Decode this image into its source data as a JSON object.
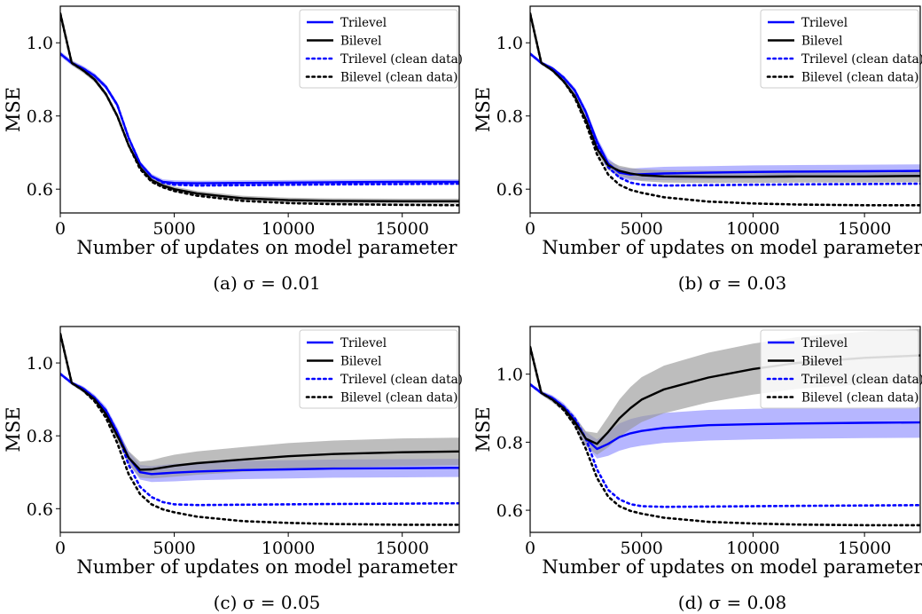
{
  "colors": {
    "trilevel": "#0000ff",
    "bilevel": "#000000",
    "trilevel_band": "#8f8fff",
    "bilevel_band": "#9a9a9a"
  },
  "chart_data": [
    {
      "type": "line",
      "caption": "(a) σ = 0.01",
      "xlabel": "Number of updates on model parameter",
      "ylabel": "MSE",
      "xlim": [
        0,
        17500
      ],
      "ylim": [
        0.535,
        1.1
      ],
      "xticks": [
        0,
        5000,
        10000,
        15000
      ],
      "yticks": [
        0.6,
        0.8,
        1.0
      ],
      "legend_position": "top-right",
      "series": [
        {
          "name": "Trilevel",
          "style": "solid",
          "color": "#0000ff",
          "x": [
            0,
            500,
            1000,
            1500,
            2000,
            2500,
            3000,
            3500,
            4000,
            4500,
            5000,
            6000,
            8000,
            10000,
            12000,
            15000,
            17500
          ],
          "y": [
            0.97,
            0.945,
            0.93,
            0.91,
            0.88,
            0.83,
            0.74,
            0.67,
            0.635,
            0.62,
            0.617,
            0.616,
            0.617,
            0.618,
            0.619,
            0.62,
            0.62
          ],
          "band": [
            0.007,
            0.007,
            0.007,
            0.007,
            0.007,
            0.007,
            0.007,
            0.007,
            0.007,
            0.007,
            0.007,
            0.007,
            0.007,
            0.007,
            0.007,
            0.007,
            0.007
          ]
        },
        {
          "name": "Bilevel",
          "style": "solid",
          "color": "#000000",
          "x": [
            0,
            500,
            1000,
            1500,
            2000,
            2500,
            3000,
            3500,
            4000,
            4500,
            5000,
            6000,
            8000,
            10000,
            12000,
            15000,
            17500
          ],
          "y": [
            1.08,
            0.945,
            0.925,
            0.9,
            0.86,
            0.8,
            0.72,
            0.66,
            0.625,
            0.61,
            0.6,
            0.588,
            0.575,
            0.57,
            0.568,
            0.567,
            0.567
          ],
          "band": [
            0.007,
            0.007,
            0.007,
            0.007,
            0.007,
            0.007,
            0.007,
            0.007,
            0.007,
            0.007,
            0.007,
            0.007,
            0.007,
            0.007,
            0.007,
            0.007,
            0.007
          ]
        },
        {
          "name": "Trilevel (clean data)",
          "style": "dotted",
          "color": "#0000ff",
          "x": [
            0,
            500,
            1000,
            1500,
            2000,
            2500,
            3000,
            3500,
            4000,
            4500,
            5000,
            6000,
            8000,
            10000,
            12000,
            15000,
            17500
          ],
          "y": [
            0.97,
            0.945,
            0.93,
            0.91,
            0.88,
            0.83,
            0.74,
            0.67,
            0.635,
            0.618,
            0.612,
            0.61,
            0.611,
            0.612,
            0.613,
            0.614,
            0.615
          ]
        },
        {
          "name": "Bilevel (clean data)",
          "style": "dotted",
          "color": "#000000",
          "x": [
            0,
            500,
            1000,
            1500,
            2000,
            2500,
            3000,
            3500,
            4000,
            4500,
            5000,
            6000,
            8000,
            10000,
            12000,
            15000,
            17500
          ],
          "y": [
            1.08,
            0.945,
            0.925,
            0.9,
            0.86,
            0.8,
            0.72,
            0.655,
            0.62,
            0.605,
            0.595,
            0.582,
            0.568,
            0.562,
            0.559,
            0.557,
            0.556
          ]
        }
      ]
    },
    {
      "type": "line",
      "caption": "(b) σ = 0.03",
      "xlabel": "Number of updates on model parameter",
      "ylabel": "MSE",
      "xlim": [
        0,
        17500
      ],
      "ylim": [
        0.535,
        1.1
      ],
      "xticks": [
        0,
        5000,
        10000,
        15000
      ],
      "yticks": [
        0.6,
        0.8,
        1.0
      ],
      "legend_position": "top-right",
      "series": [
        {
          "name": "Trilevel",
          "style": "solid",
          "color": "#0000ff",
          "x": [
            0,
            500,
            1000,
            1500,
            2000,
            2500,
            3000,
            3500,
            4000,
            4500,
            5000,
            6000,
            8000,
            10000,
            12000,
            15000,
            17500
          ],
          "y": [
            0.97,
            0.945,
            0.93,
            0.905,
            0.87,
            0.81,
            0.73,
            0.67,
            0.645,
            0.64,
            0.641,
            0.643,
            0.645,
            0.647,
            0.648,
            0.649,
            0.65
          ],
          "band": [
            0.005,
            0.005,
            0.005,
            0.006,
            0.008,
            0.01,
            0.012,
            0.014,
            0.015,
            0.016,
            0.017,
            0.018,
            0.018,
            0.018,
            0.018,
            0.018,
            0.018
          ]
        },
        {
          "name": "Bilevel",
          "style": "solid",
          "color": "#000000",
          "x": [
            0,
            500,
            1000,
            1500,
            2000,
            2500,
            3000,
            3500,
            4000,
            4500,
            5000,
            6000,
            8000,
            10000,
            12000,
            15000,
            17500
          ],
          "y": [
            1.08,
            0.945,
            0.925,
            0.895,
            0.855,
            0.79,
            0.71,
            0.665,
            0.65,
            0.643,
            0.638,
            0.635,
            0.634,
            0.634,
            0.635,
            0.635,
            0.636
          ],
          "band": [
            0.005,
            0.005,
            0.005,
            0.006,
            0.008,
            0.01,
            0.012,
            0.013,
            0.014,
            0.015,
            0.016,
            0.017,
            0.017,
            0.017,
            0.017,
            0.017,
            0.017
          ]
        },
        {
          "name": "Trilevel (clean data)",
          "style": "dotted",
          "color": "#0000ff",
          "x": [
            0,
            500,
            1000,
            1500,
            2000,
            2500,
            3000,
            3500,
            4000,
            4500,
            5000,
            6000,
            8000,
            10000,
            12000,
            15000,
            17500
          ],
          "y": [
            0.97,
            0.945,
            0.93,
            0.905,
            0.87,
            0.81,
            0.72,
            0.66,
            0.632,
            0.618,
            0.612,
            0.61,
            0.611,
            0.612,
            0.613,
            0.614,
            0.615
          ]
        },
        {
          "name": "Bilevel (clean data)",
          "style": "dotted",
          "color": "#000000",
          "x": [
            0,
            500,
            1000,
            1500,
            2000,
            2500,
            3000,
            3500,
            4000,
            4500,
            5000,
            6000,
            8000,
            10000,
            12000,
            15000,
            17500
          ],
          "y": [
            1.08,
            0.945,
            0.925,
            0.895,
            0.85,
            0.78,
            0.695,
            0.64,
            0.612,
            0.598,
            0.59,
            0.578,
            0.566,
            0.561,
            0.558,
            0.556,
            0.556
          ]
        }
      ]
    },
    {
      "type": "line",
      "caption": "(c) σ = 0.05",
      "xlabel": "Number of updates on model parameter",
      "ylabel": "MSE",
      "xlim": [
        0,
        17500
      ],
      "ylim": [
        0.535,
        1.1
      ],
      "xticks": [
        0,
        5000,
        10000,
        15000
      ],
      "yticks": [
        0.6,
        0.8,
        1.0
      ],
      "legend_position": "top-right",
      "series": [
        {
          "name": "Trilevel",
          "style": "solid",
          "color": "#0000ff",
          "x": [
            0,
            500,
            1000,
            1500,
            2000,
            2500,
            3000,
            3500,
            4000,
            4500,
            5000,
            6000,
            8000,
            10000,
            12000,
            15000,
            17500
          ],
          "y": [
            0.97,
            0.945,
            0.93,
            0.905,
            0.87,
            0.81,
            0.74,
            0.7,
            0.695,
            0.697,
            0.699,
            0.702,
            0.706,
            0.708,
            0.71,
            0.711,
            0.712
          ],
          "band": [
            0.005,
            0.005,
            0.006,
            0.008,
            0.01,
            0.013,
            0.017,
            0.02,
            0.022,
            0.023,
            0.024,
            0.024,
            0.025,
            0.025,
            0.025,
            0.025,
            0.025
          ]
        },
        {
          "name": "Bilevel",
          "style": "solid",
          "color": "#000000",
          "x": [
            0,
            500,
            1000,
            1500,
            2000,
            2500,
            3000,
            3500,
            4000,
            4500,
            5000,
            6000,
            8000,
            10000,
            12000,
            15000,
            17500
          ],
          "y": [
            1.08,
            0.945,
            0.925,
            0.9,
            0.86,
            0.8,
            0.74,
            0.707,
            0.708,
            0.713,
            0.718,
            0.725,
            0.735,
            0.744,
            0.75,
            0.755,
            0.757
          ],
          "band": [
            0.005,
            0.005,
            0.006,
            0.008,
            0.01,
            0.014,
            0.018,
            0.022,
            0.025,
            0.028,
            0.03,
            0.032,
            0.034,
            0.036,
            0.037,
            0.038,
            0.038
          ]
        },
        {
          "name": "Trilevel (clean data)",
          "style": "dotted",
          "color": "#0000ff",
          "x": [
            0,
            500,
            1000,
            1500,
            2000,
            2500,
            3000,
            3500,
            4000,
            4500,
            5000,
            6000,
            8000,
            10000,
            12000,
            15000,
            17500
          ],
          "y": [
            0.97,
            0.945,
            0.93,
            0.905,
            0.87,
            0.81,
            0.72,
            0.66,
            0.632,
            0.618,
            0.612,
            0.61,
            0.611,
            0.612,
            0.613,
            0.614,
            0.615
          ]
        },
        {
          "name": "Bilevel (clean data)",
          "style": "dotted",
          "color": "#000000",
          "x": [
            0,
            500,
            1000,
            1500,
            2000,
            2500,
            3000,
            3500,
            4000,
            4500,
            5000,
            6000,
            8000,
            10000,
            12000,
            15000,
            17500
          ],
          "y": [
            1.08,
            0.945,
            0.925,
            0.895,
            0.85,
            0.78,
            0.695,
            0.64,
            0.612,
            0.598,
            0.59,
            0.578,
            0.566,
            0.561,
            0.558,
            0.556,
            0.556
          ]
        }
      ]
    },
    {
      "type": "line",
      "caption": "(d) σ = 0.08",
      "xlabel": "Number of updates on model parameter",
      "ylabel": "MSE",
      "xlim": [
        0,
        17500
      ],
      "ylim": [
        0.535,
        1.14
      ],
      "xticks": [
        0,
        5000,
        10000,
        15000
      ],
      "yticks": [
        0.6,
        0.8,
        1.0
      ],
      "legend_position": "top-right",
      "series": [
        {
          "name": "Trilevel",
          "style": "solid",
          "color": "#0000ff",
          "x": [
            0,
            500,
            1000,
            1500,
            2000,
            2500,
            3000,
            3500,
            4000,
            4500,
            5000,
            6000,
            8000,
            10000,
            12000,
            15000,
            17500
          ],
          "y": [
            0.97,
            0.945,
            0.93,
            0.905,
            0.865,
            0.81,
            0.78,
            0.795,
            0.815,
            0.826,
            0.833,
            0.842,
            0.85,
            0.853,
            0.855,
            0.857,
            0.858
          ],
          "band": [
            0.005,
            0.006,
            0.008,
            0.01,
            0.014,
            0.02,
            0.028,
            0.035,
            0.04,
            0.042,
            0.043,
            0.044,
            0.045,
            0.045,
            0.045,
            0.045,
            0.045
          ]
        },
        {
          "name": "Bilevel",
          "style": "solid",
          "color": "#000000",
          "x": [
            0,
            500,
            1000,
            1500,
            2000,
            2500,
            3000,
            3500,
            4000,
            4500,
            5000,
            6000,
            8000,
            10000,
            12000,
            15000,
            17500
          ],
          "y": [
            1.08,
            0.945,
            0.925,
            0.9,
            0.86,
            0.81,
            0.795,
            0.83,
            0.87,
            0.9,
            0.925,
            0.955,
            0.99,
            1.015,
            1.033,
            1.048,
            1.055
          ],
          "band": [
            0.005,
            0.006,
            0.008,
            0.01,
            0.015,
            0.022,
            0.032,
            0.045,
            0.055,
            0.062,
            0.066,
            0.07,
            0.073,
            0.075,
            0.076,
            0.077,
            0.078
          ]
        },
        {
          "name": "Trilevel (clean data)",
          "style": "dotted",
          "color": "#0000ff",
          "x": [
            0,
            500,
            1000,
            1500,
            2000,
            2500,
            3000,
            3500,
            4000,
            4500,
            5000,
            6000,
            8000,
            10000,
            12000,
            15000,
            17500
          ],
          "y": [
            0.97,
            0.945,
            0.93,
            0.905,
            0.87,
            0.81,
            0.72,
            0.66,
            0.632,
            0.618,
            0.612,
            0.61,
            0.611,
            0.612,
            0.613,
            0.614,
            0.615
          ]
        },
        {
          "name": "Bilevel (clean data)",
          "style": "dotted",
          "color": "#000000",
          "x": [
            0,
            500,
            1000,
            1500,
            2000,
            2500,
            3000,
            3500,
            4000,
            4500,
            5000,
            6000,
            8000,
            10000,
            12000,
            15000,
            17500
          ],
          "y": [
            1.08,
            0.945,
            0.925,
            0.895,
            0.85,
            0.78,
            0.695,
            0.64,
            0.612,
            0.598,
            0.59,
            0.578,
            0.566,
            0.561,
            0.558,
            0.556,
            0.556
          ]
        }
      ]
    }
  ]
}
